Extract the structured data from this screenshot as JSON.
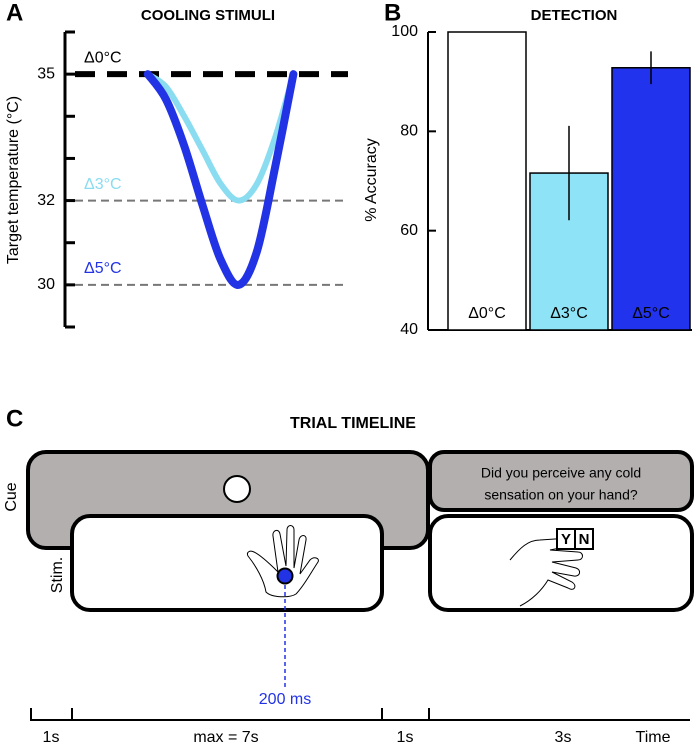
{
  "chart_data": [
    {
      "type": "line",
      "label": "A",
      "title": "COOLING STIMULI",
      "y_label": "Target temperature (°C)",
      "x": [
        0,
        1,
        2,
        3,
        4,
        5,
        6,
        7,
        8
      ],
      "xlim": [
        -4,
        11
      ],
      "ylim": [
        29,
        36
      ],
      "yticks": [
        30,
        32,
        35
      ],
      "minor_yticks": [
        29,
        31,
        33,
        34,
        36
      ],
      "series": [
        {
          "color": "#8adcf0",
          "values": [
            35,
            34.7,
            34.0,
            33.2,
            32.4,
            32.0,
            32.4,
            33.5,
            35
          ]
        },
        {
          "color": "#2233e6",
          "values": [
            35,
            34.4,
            33.3,
            31.9,
            30.6,
            30.0,
            30.8,
            32.8,
            35
          ]
        }
      ],
      "reference_lines": [
        {
          "value": 35,
          "label": "Δ0°C",
          "color": "#000000"
        },
        {
          "value": 32,
          "label": "Δ3°C",
          "color": "#8adcf0"
        },
        {
          "value": 30,
          "label": "Δ5°C",
          "color": "#2233e6"
        }
      ]
    },
    {
      "type": "bar",
      "label": "B",
      "title": "DETECTION",
      "y_label": "% Accuracy",
      "categories": [
        "Δ0°C",
        "Δ3°C",
        "Δ5°C"
      ],
      "values": [
        100,
        71.6,
        92.8
      ],
      "errors": [
        null,
        9.5,
        3.3
      ],
      "colors": [
        "#ffffff",
        "#8ee3f7",
        "#2233ee"
      ],
      "ylim": [
        40,
        100
      ],
      "yticks": [
        40,
        60,
        80,
        100
      ]
    }
  ],
  "timeline": {
    "label": "C",
    "title": "TRIAL TIMELINE",
    "rows": [
      "Cue",
      "Stim."
    ],
    "question": [
      "Did you perceive any cold",
      "sensation on your hand?"
    ],
    "keys": [
      "Y",
      "N"
    ],
    "stim_time": "200 ms",
    "intervals": [
      "1s",
      "max = 7s",
      "1s",
      "3s"
    ],
    "axis_label": "Time"
  }
}
